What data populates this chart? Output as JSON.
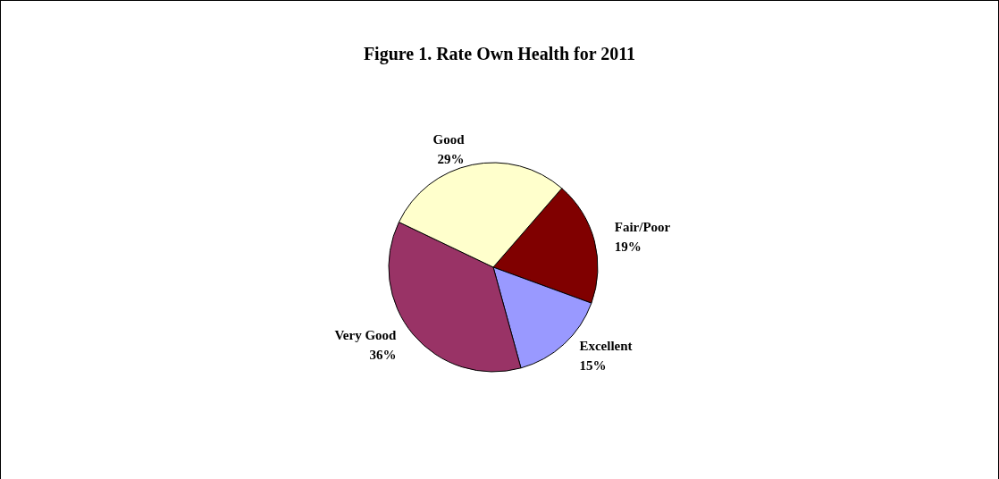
{
  "chart_data": {
    "type": "pie",
    "title": "Figure 1. Rate Own Health for 2011",
    "categories": [
      "Fair/Poor",
      "Excellent",
      "Very Good",
      "Good"
    ],
    "values": [
      19,
      15,
      36,
      29
    ],
    "colors": [
      "#800000",
      "#9999ff",
      "#993366",
      "#ffffcc"
    ],
    "value_labels": [
      "19%",
      "15%",
      "36%",
      "29%"
    ],
    "legend": false
  }
}
